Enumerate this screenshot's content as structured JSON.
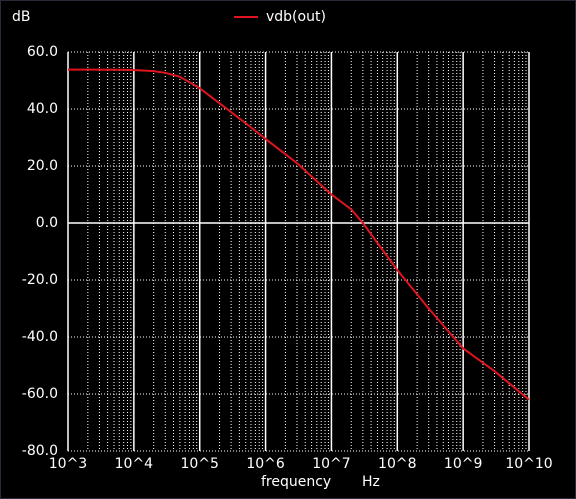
{
  "chart_data": {
    "type": "line",
    "log_x": true,
    "grid": true,
    "minor_grid": true,
    "y_label": "dB",
    "x_label": "frequency",
    "x_unit": "Hz",
    "x": [
      1000,
      3000,
      10000,
      20000,
      30000,
      50000,
      100000,
      200000,
      500000,
      1000000,
      3000000,
      10000000,
      20000000,
      30000000,
      50000000,
      100000000,
      300000000,
      1000000000,
      3000000000,
      10000000000
    ],
    "series": [
      {
        "name": "vdb(out)",
        "color": "#e0141e",
        "values": [
          53.8,
          53.8,
          53.7,
          53.3,
          52.7,
          51.3,
          47.3,
          42,
          35,
          29.5,
          21,
          10,
          4.8,
          0,
          -7,
          -16.5,
          -30,
          -44,
          -52,
          -62
        ]
      }
    ],
    "xlim": [
      1000,
      10000000000
    ],
    "xticks": [
      {
        "value": 1000,
        "label": "10^3"
      },
      {
        "value": 10000,
        "label": "10^4"
      },
      {
        "value": 100000,
        "label": "10^5"
      },
      {
        "value": 1000000,
        "label": "10^6"
      },
      {
        "value": 10000000,
        "label": "10^7"
      },
      {
        "value": 100000000,
        "label": "10^8"
      },
      {
        "value": 1000000000,
        "label": "10^9"
      },
      {
        "value": 10000000000,
        "label": "10^10"
      }
    ],
    "ylim": [
      -80,
      60
    ],
    "yticks": [
      {
        "value": -80,
        "label": "-80.0"
      },
      {
        "value": -60,
        "label": "-60.0"
      },
      {
        "value": -40,
        "label": "-40.0"
      },
      {
        "value": -20,
        "label": "-20.0"
      },
      {
        "value": 0,
        "label": "0.0"
      },
      {
        "value": 20,
        "label": "20.0"
      },
      {
        "value": 40,
        "label": "40.0"
      },
      {
        "value": 60,
        "label": "60.0"
      }
    ]
  }
}
